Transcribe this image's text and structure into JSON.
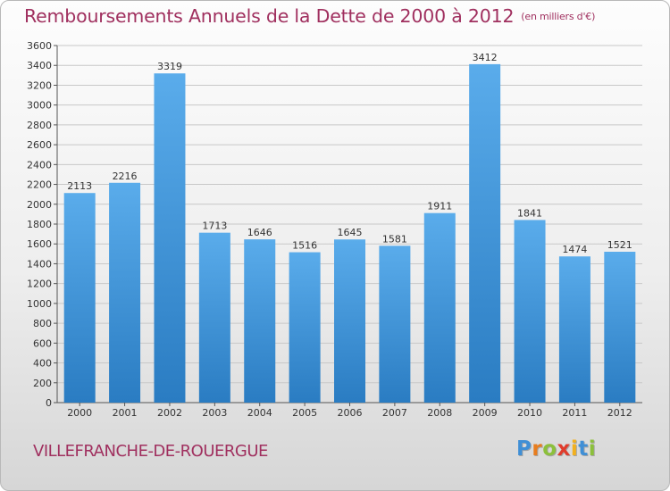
{
  "chart_data": {
    "type": "bar",
    "title": "Remboursements Annuels de la Dette de 2000 à 2012",
    "unit": "(en milliers d'€)",
    "categories": [
      "2000",
      "2001",
      "2002",
      "2003",
      "2004",
      "2005",
      "2006",
      "2007",
      "2008",
      "2009",
      "2010",
      "2011",
      "2012"
    ],
    "values": [
      2113,
      2216,
      3319,
      1713,
      1646,
      1516,
      1645,
      1581,
      1911,
      3412,
      1841,
      1474,
      1521
    ],
    "ylim": [
      0,
      3600
    ],
    "yticks": [
      0,
      200,
      400,
      600,
      800,
      1000,
      1200,
      1400,
      1600,
      1800,
      2000,
      2200,
      2400,
      2600,
      2800,
      3000,
      3200,
      3400,
      3600
    ],
    "grid": true,
    "colors": {
      "bar_light": "#5aaceb",
      "bar_dark": "#2a7cc2",
      "title": "#a0305f"
    }
  },
  "footer": {
    "city": "VILLEFRANCHE-DE-ROUERGUE",
    "logo_letters": [
      {
        "ch": "P",
        "color": "#3f8fd6"
      },
      {
        "ch": "r",
        "color": "#e87d1e"
      },
      {
        "ch": "o",
        "color": "#8cc03b"
      },
      {
        "ch": "x",
        "color": "#e03c2c"
      },
      {
        "ch": "i",
        "color": "#f2b01e"
      },
      {
        "ch": "t",
        "color": "#3f8fd6"
      },
      {
        "ch": "i",
        "color": "#8cc03b"
      }
    ]
  }
}
